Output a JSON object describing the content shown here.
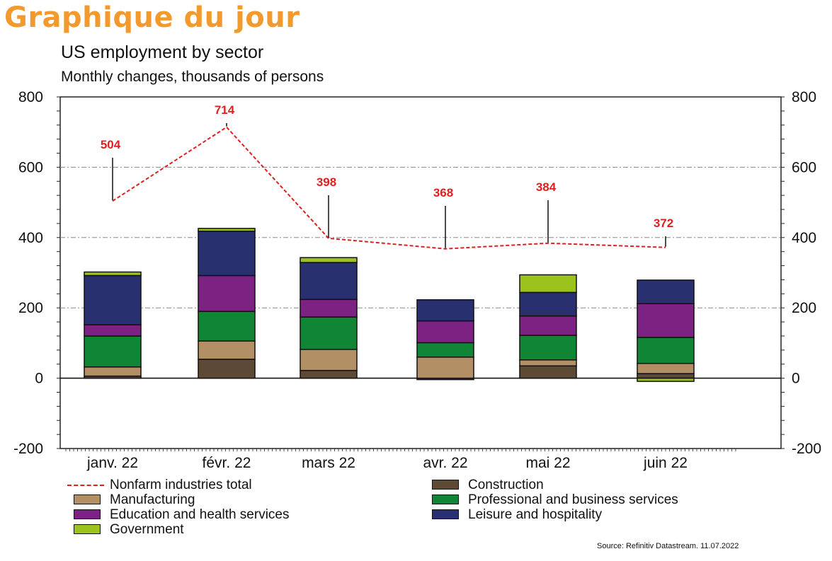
{
  "header": {
    "title": "Graphique du jour"
  },
  "chart_title": "US employment by sector",
  "chart_subtitle": "Monthly changes, thousands of persons",
  "source": "Source: Refinitiv Datastream. 11.07.2022",
  "chart_data": {
    "type": "bar",
    "stacked": true,
    "categories": [
      "janv. 22",
      "févr. 22",
      "mars 22",
      "avr. 22",
      "mai 22",
      "juin 22"
    ],
    "ylim": [
      -200,
      800
    ],
    "yticks": [
      -200,
      0,
      200,
      400,
      600,
      800
    ],
    "grid": true,
    "series": [
      {
        "name": "Construction",
        "color": "#5c4a36",
        "values": [
          6,
          54,
          22,
          -4,
          35,
          13
        ]
      },
      {
        "name": "Manufacturing",
        "color": "#b38f66",
        "values": [
          26,
          52,
          60,
          60,
          17,
          29
        ]
      },
      {
        "name": "Professional and business services",
        "color": "#0f8535",
        "values": [
          88,
          84,
          92,
          41,
          70,
          74
        ]
      },
      {
        "name": "Education and health services",
        "color": "#7b2283",
        "values": [
          32,
          102,
          50,
          62,
          55,
          96
        ]
      },
      {
        "name": "Leisure and hospitality",
        "color": "#283070",
        "values": [
          140,
          126,
          105,
          60,
          67,
          67
        ]
      },
      {
        "name": "Government",
        "color": "#9bc21d",
        "values": [
          10,
          8,
          14,
          0,
          50,
          -9
        ]
      }
    ],
    "line_series": {
      "name": "Nonfarm industries total",
      "color": "#e02020",
      "style": "dashed",
      "values": [
        504,
        714,
        398,
        368,
        384,
        372
      ],
      "labels": [
        "504",
        "714",
        "398",
        "368",
        "384",
        "372"
      ]
    }
  },
  "legend": {
    "line_label": "Nonfarm industries total",
    "items_left": [
      {
        "label": "Manufacturing",
        "color": "#b38f66"
      },
      {
        "label": "Education and health services",
        "color": "#7b2283"
      },
      {
        "label": "Government",
        "color": "#9bc21d"
      }
    ],
    "items_right": [
      {
        "label": "Construction",
        "color": "#5c4a36"
      },
      {
        "label": "Professional and business services",
        "color": "#0f8535"
      },
      {
        "label": "Leisure and hospitality",
        "color": "#283070"
      }
    ]
  }
}
